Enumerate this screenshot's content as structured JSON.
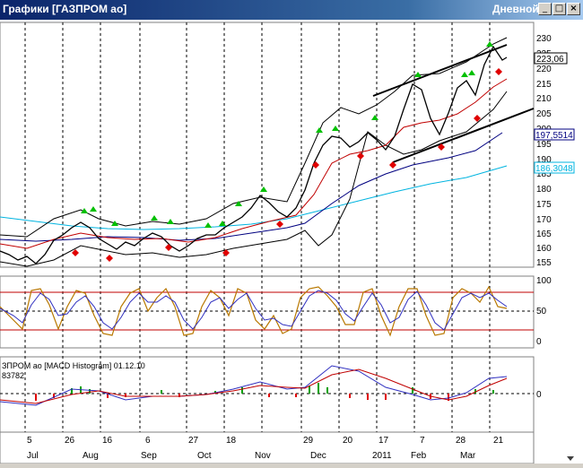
{
  "window": {
    "title": "Графики [ГАЗПРОМ ао]",
    "mode": "Дневной",
    "buttons": {
      "minimize": "_",
      "maximize": "□",
      "close": "×"
    }
  },
  "price_panel": {
    "y_ticks": [
      "230",
      "225",
      "220",
      "215",
      "210",
      "205",
      "200",
      "195",
      "190",
      "185",
      "180",
      "175",
      "170",
      "165",
      "160",
      "155"
    ],
    "markers": {
      "last": "223,06",
      "middle": "197,5514",
      "lower": "186,3048"
    },
    "colors": {
      "price": "#000000",
      "ma_short": "#c00000",
      "ma_mid": "#000080",
      "ma_long": "#00b4e0",
      "bands": "#000000",
      "fractal_up": "#00c000",
      "fractal_down": "#e00000"
    }
  },
  "stoch_panel": {
    "y_ticks": [
      "100",
      "50",
      "0"
    ],
    "levels": [
      80,
      20
    ],
    "colors": {
      "k": "#b87800",
      "d": "#3030c0",
      "levels": "#c00000"
    }
  },
  "macd_panel": {
    "label": "ЗПРОМ ао [MACD Histogram] 01.12.10",
    "value": "83782",
    "y_ticks": [
      "0"
    ],
    "colors": {
      "macd": "#3030c0",
      "signal": "#c00000",
      "hist_pos": "#00a000",
      "hist_neg": "#e00000"
    }
  },
  "x_axis": {
    "days": [
      "5",
      "26",
      "16",
      "6",
      "27",
      "18",
      "29",
      "20",
      "17",
      "7",
      "28",
      "21"
    ],
    "months": [
      "Jul",
      "Aug",
      "Sep",
      "Oct",
      "Nov",
      "Dec",
      "2011",
      "Feb",
      "Mar"
    ]
  }
}
